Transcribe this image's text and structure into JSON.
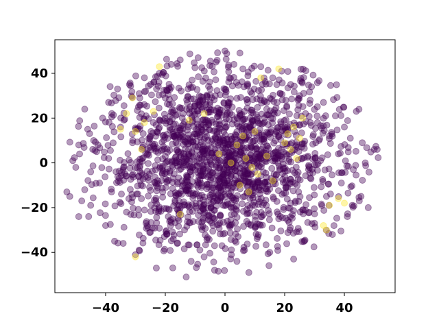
{
  "chart_data": {
    "type": "scatter",
    "title": "",
    "xlabel": "",
    "ylabel": "",
    "xlim": [
      -57,
      57
    ],
    "ylim": [
      -58,
      55
    ],
    "xticks": [
      -40,
      -20,
      0,
      20,
      40
    ],
    "yticks": [
      -40,
      -20,
      0,
      20,
      40
    ],
    "xtick_labels": [
      "−40",
      "−20",
      "0",
      "20",
      "40"
    ],
    "ytick_labels": [
      "−40",
      "−20",
      "0",
      "20",
      "40"
    ],
    "grid": false,
    "legend": "none",
    "marker_alpha": 0.4,
    "series": [
      {
        "color": "#440154",
        "approx_point_count": 1900,
        "points": [
          [
            -53,
            -13
          ],
          [
            -52,
            -15
          ],
          [
            -51,
            1
          ],
          [
            -50,
            -2
          ],
          [
            -49,
            8
          ],
          [
            -49,
            -24
          ],
          [
            -48,
            -17
          ],
          [
            -47,
            24
          ],
          [
            -47,
            -12
          ],
          [
            -46,
            15
          ],
          [
            -45,
            -4
          ],
          [
            -45,
            -19
          ],
          [
            -44,
            10
          ],
          [
            -43,
            5
          ],
          [
            -42,
            -9
          ],
          [
            -41,
            20
          ],
          [
            -40,
            -28
          ],
          [
            -39,
            27
          ],
          [
            -39,
            2
          ],
          [
            -38,
            -13
          ],
          [
            -37,
            -35
          ],
          [
            -36,
            33
          ],
          [
            -35,
            16
          ],
          [
            -34,
            -2
          ],
          [
            -33,
            -22
          ],
          [
            -32,
            35
          ],
          [
            -31,
            9
          ],
          [
            -30,
            -41
          ],
          [
            -29,
            25
          ],
          [
            -28,
            -16
          ],
          [
            -27,
            38
          ],
          [
            -26,
            6
          ],
          [
            -25,
            -31
          ],
          [
            -24,
            18
          ],
          [
            -23,
            -47
          ],
          [
            -22,
            40
          ],
          [
            -21,
            -5
          ],
          [
            -20,
            29
          ],
          [
            -19,
            -24
          ],
          [
            -18,
            44
          ],
          [
            -17,
            12
          ],
          [
            -16,
            -36
          ],
          [
            -15,
            46
          ],
          [
            -14,
            22
          ],
          [
            -13,
            -51
          ],
          [
            -12,
            3
          ],
          [
            -11,
            37
          ],
          [
            -10,
            -14
          ],
          [
            -9,
            47
          ],
          [
            -8,
            25
          ],
          [
            -7,
            -42
          ],
          [
            -6,
            -1
          ],
          [
            -5,
            33
          ],
          [
            -4,
            -28
          ],
          [
            -3,
            45
          ],
          [
            -2,
            14
          ],
          [
            -1,
            -37
          ],
          [
            0,
            50
          ],
          [
            1,
            7
          ],
          [
            2,
            -20
          ],
          [
            3,
            44
          ],
          [
            4,
            -44
          ],
          [
            5,
            21
          ],
          [
            6,
            42
          ],
          [
            7,
            -6
          ],
          [
            8,
            -49
          ],
          [
            9,
            31
          ],
          [
            10,
            10
          ],
          [
            11,
            -33
          ],
          [
            12,
            43
          ],
          [
            13,
            -18
          ],
          [
            14,
            27
          ],
          [
            15,
            -40
          ],
          [
            16,
            38
          ],
          [
            17,
            5
          ],
          [
            18,
            -25
          ],
          [
            19,
            41
          ],
          [
            20,
            16
          ],
          [
            21,
            -11
          ],
          [
            22,
            35
          ],
          [
            23,
            -43
          ],
          [
            24,
            8
          ],
          [
            25,
            30
          ],
          [
            26,
            -21
          ],
          [
            27,
            22
          ],
          [
            28,
            -3
          ],
          [
            29,
            34
          ],
          [
            30,
            -27
          ],
          [
            31,
            18
          ],
          [
            32,
            1
          ],
          [
            33,
            27
          ],
          [
            34,
            -15
          ],
          [
            35,
            12
          ],
          [
            36,
            -32
          ],
          [
            37,
            21
          ],
          [
            38,
            4
          ],
          [
            39,
            -9
          ],
          [
            40,
            16
          ],
          [
            41,
            -24
          ],
          [
            42,
            11
          ],
          [
            43,
            -3
          ],
          [
            44,
            23
          ],
          [
            45,
            -17
          ],
          [
            46,
            9
          ],
          [
            47,
            0
          ],
          [
            48,
            -20
          ],
          [
            50,
            6
          ],
          [
            51,
            6
          ]
        ]
      },
      {
        "color": "#fde725",
        "points": [
          [
            -35,
            15
          ],
          [
            -33,
            22
          ],
          [
            -31,
            29
          ],
          [
            -30,
            14
          ],
          [
            -28,
            6
          ],
          [
            -27,
            18
          ],
          [
            -24,
            23
          ],
          [
            -22,
            43
          ],
          [
            -12,
            19
          ],
          [
            -7,
            22
          ],
          [
            -2,
            4
          ],
          [
            2,
            0
          ],
          [
            4,
            8
          ],
          [
            5,
            -10
          ],
          [
            6,
            12
          ],
          [
            7,
            2
          ],
          [
            8,
            -13
          ],
          [
            9,
            -2
          ],
          [
            10,
            14
          ],
          [
            11,
            -5
          ],
          [
            12,
            38
          ],
          [
            14,
            3
          ],
          [
            16,
            -8
          ],
          [
            18,
            42
          ],
          [
            20,
            9
          ],
          [
            21,
            13
          ],
          [
            22,
            6
          ],
          [
            23,
            16
          ],
          [
            24,
            2
          ],
          [
            25,
            11
          ],
          [
            26,
            20
          ],
          [
            33,
            -28
          ],
          [
            34,
            -30
          ],
          [
            35,
            -19
          ],
          [
            38,
            -16
          ],
          [
            40,
            -18
          ],
          [
            -30,
            -42
          ],
          [
            -15,
            -23
          ]
        ]
      }
    ]
  }
}
